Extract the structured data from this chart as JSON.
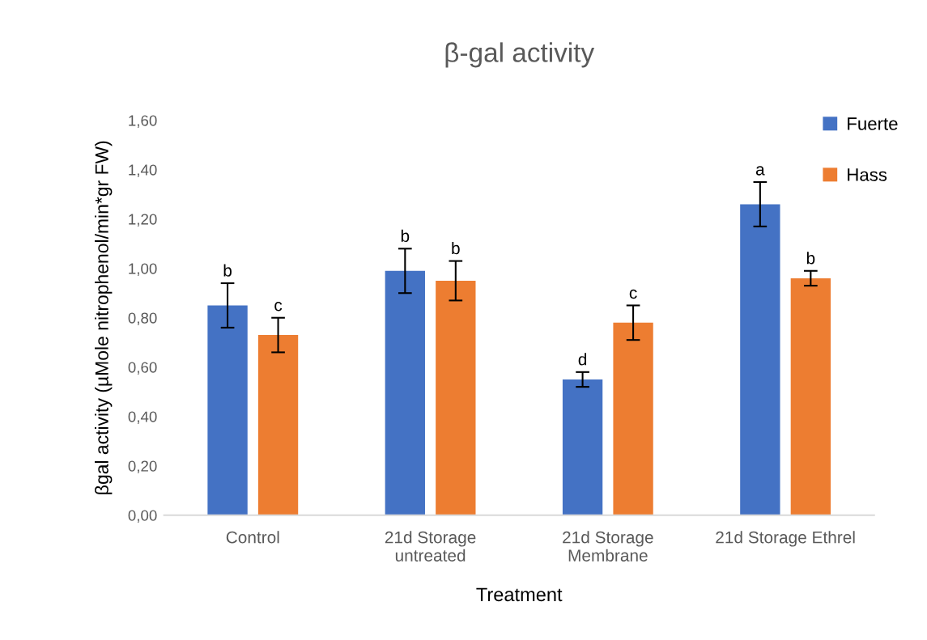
{
  "chart_data": {
    "type": "bar",
    "title": "β-gal activity",
    "xlabel": "Treatment",
    "ylabel": "βgal activity (µMole nitrophenol/min*gr FW)",
    "categories": [
      "Control",
      "21d Storage\nuntreated",
      "21d Storage\nMembrane",
      "21d Storage Ethrel"
    ],
    "series": [
      {
        "name": "Fuerte",
        "color": "#4472c4",
        "values": [
          0.85,
          0.99,
          0.55,
          1.26
        ],
        "errors": [
          0.09,
          0.09,
          0.03,
          0.09
        ],
        "value_labels": [
          "b",
          "b",
          "d",
          "a"
        ]
      },
      {
        "name": "Hass",
        "color": "#ed7d31",
        "values": [
          0.73,
          0.95,
          0.78,
          0.96
        ],
        "errors": [
          0.07,
          0.08,
          0.07,
          0.03
        ],
        "value_labels": [
          "c",
          "b",
          "c",
          "b"
        ]
      }
    ],
    "ylim": [
      0,
      1.6
    ],
    "yticks": [
      {
        "value": 0,
        "label": "0,00"
      },
      {
        "value": 0.2,
        "label": "0,20"
      },
      {
        "value": 0.4,
        "label": "0,40"
      },
      {
        "value": 0.6,
        "label": "0,60"
      },
      {
        "value": 0.8,
        "label": "0,80"
      },
      {
        "value": 1.0,
        "label": "1,00"
      },
      {
        "value": 1.2,
        "label": "1,20"
      },
      {
        "value": 1.4,
        "label": "1,40"
      },
      {
        "value": 1.6,
        "label": "1,60"
      }
    ],
    "legend": "top right"
  }
}
